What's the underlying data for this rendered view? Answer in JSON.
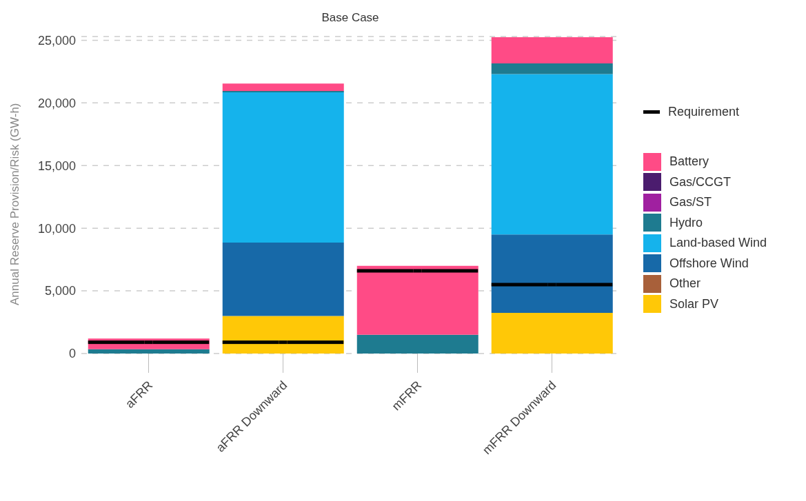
{
  "chart_data": {
    "type": "bar",
    "title": "Base Case",
    "ylabel": "Annual Reserve Provision/Risk (GW-h)",
    "categories": [
      "aFRR",
      "aFRR Downward",
      "mFRR",
      "mFRR Downward"
    ],
    "stacked": true,
    "ylim": [
      0,
      25300
    ],
    "yticks": [
      0,
      {
        "value": 5000,
        "label": "5,000"
      },
      {
        "value": 10000,
        "label": "10,000"
      },
      {
        "value": 15000,
        "label": "15,000"
      },
      {
        "value": 20000,
        "label": "20,000"
      },
      {
        "value": 25000,
        "label": "25,000"
      }
    ],
    "grid": "y",
    "legend": "right",
    "series": [
      {
        "name": "Solar PV",
        "color": "#ffc807",
        "values": [
          0,
          3000,
          0,
          3250
        ]
      },
      {
        "name": "Other",
        "color": "#a8603a",
        "values": [
          0,
          0,
          0,
          0
        ]
      },
      {
        "name": "Offshore Wind",
        "color": "#1769a8",
        "values": [
          0,
          5850,
          0,
          6250
        ]
      },
      {
        "name": "Land-based Wind",
        "color": "#15b3ec",
        "values": [
          0,
          12000,
          0,
          12800
        ]
      },
      {
        "name": "Hydro",
        "color": "#1e7b90",
        "values": [
          350,
          100,
          1500,
          850
        ]
      },
      {
        "name": "Gas/ST",
        "color": "#a020a0",
        "values": [
          0,
          0,
          0,
          0
        ]
      },
      {
        "name": "Gas/CCGT",
        "color": "#4b1c6e",
        "values": [
          0,
          0,
          0,
          0
        ]
      },
      {
        "name": "Battery",
        "color": "#ff4b86",
        "values": [
          850,
          600,
          5500,
          2100
        ]
      },
      {
        "name": "Requirement",
        "type": "scatter",
        "color": "#000000",
        "values": [
          900,
          900,
          6600,
          5500
        ]
      }
    ]
  }
}
